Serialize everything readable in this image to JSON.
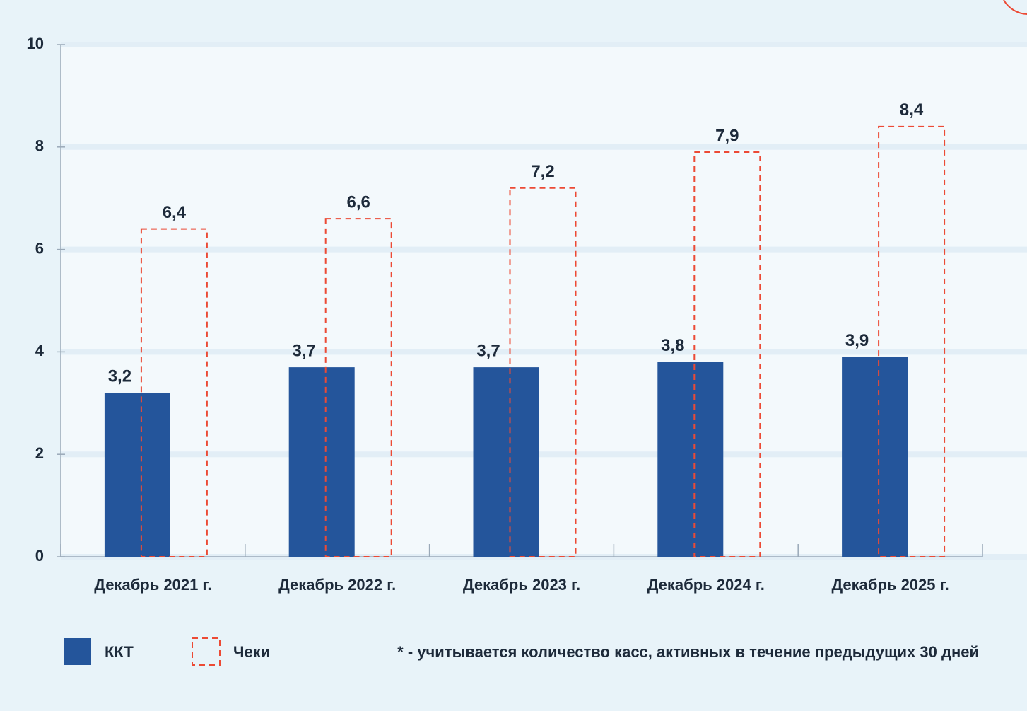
{
  "chart_data": {
    "type": "bar",
    "categories": [
      "Декабрь 2021 г.",
      "Декабрь 2022 г.",
      "Декабрь 2023 г.",
      "Декабрь 2024 г.",
      "Декабрь 2025 г."
    ],
    "series": [
      {
        "name": "ККТ",
        "color": "#24559b",
        "values": [
          3.2,
          3.7,
          3.7,
          3.8,
          3.9
        ],
        "value_labels": [
          "3,2",
          "3,7",
          "3,7",
          "3,8",
          "3,9"
        ]
      },
      {
        "name": "Чеки",
        "color": "#ec4a35",
        "values": [
          6.4,
          6.6,
          7.2,
          7.9,
          8.4
        ],
        "value_labels": [
          "6,4",
          "6,6",
          "7,2",
          "7,9",
          "8,4"
        ]
      }
    ],
    "ylim": [
      0,
      10
    ],
    "yticks": [
      0,
      2,
      4,
      6,
      8,
      10
    ],
    "grid": true,
    "annotation": "* - учитывается количество касс, активных в течение предыдущих 30 дней"
  }
}
